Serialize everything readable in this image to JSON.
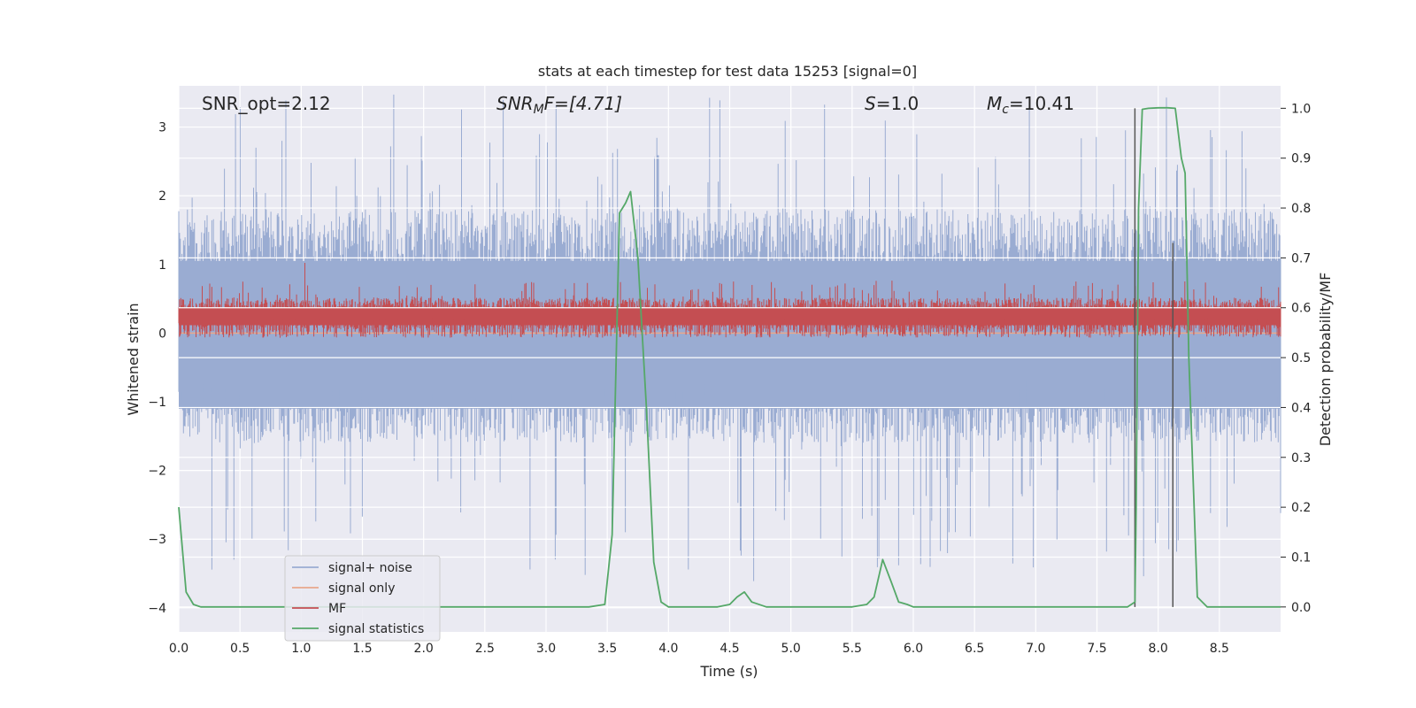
{
  "colors": {
    "background": "#eaeaf2",
    "grid": "#ffffff",
    "signal_noise": "#9aacd2",
    "signal_only": "#e8a88c",
    "mf": "#c44e52",
    "signal_statistics": "#55a868",
    "vline": "#555555"
  },
  "chart_data": {
    "type": "line",
    "title": "stats at each timestep for test data 15253 [signal=0]",
    "xlabel": "Time (s)",
    "ylabel": "Whitened strain",
    "ylabel_right": "Detection probability/MF",
    "xlim": [
      0,
      9
    ],
    "ylim": [
      -4.35,
      3.6
    ],
    "ylim_right": [
      -0.05,
      1.045
    ],
    "x_ticks": [
      0.0,
      0.5,
      1.0,
      1.5,
      2.0,
      2.5,
      3.0,
      3.5,
      4.0,
      4.5,
      5.0,
      5.5,
      6.0,
      6.5,
      7.0,
      7.5,
      8.0,
      8.5
    ],
    "x_tick_labels": [
      "0.0",
      "0.5",
      "1.0",
      "1.5",
      "2.0",
      "2.5",
      "3.0",
      "3.5",
      "4.0",
      "4.5",
      "5.0",
      "5.5",
      "6.0",
      "6.5",
      "7.0",
      "7.5",
      "8.0",
      "8.5"
    ],
    "y_ticks": [
      3,
      2,
      1,
      0,
      -1,
      -2,
      -3,
      -4
    ],
    "y_tick_labels": [
      "3",
      "2",
      "1",
      "0",
      "−1",
      "−2",
      "−3",
      "−4"
    ],
    "y_right_ticks": [
      1.0,
      0.9,
      0.8,
      0.7,
      0.6,
      0.5,
      0.4,
      0.3,
      0.2,
      0.1,
      0.0
    ],
    "y_right_tick_labels": [
      "1.0",
      "0.9",
      "0.8",
      "0.7",
      "0.6",
      "0.5",
      "0.4",
      "0.3",
      "0.2",
      "0.1",
      "0.0"
    ],
    "grid": true,
    "legend_position": "lower-left",
    "annotations": {
      "snr_opt": "SNR_opt=2.12",
      "snr_mf_main": "SNR",
      "snr_mf_sub": "M",
      "snr_mf_rest": "F=[4.71]",
      "s_main": "S",
      "s_rest": "=1.0",
      "mc_main": "M",
      "mc_sub": "c",
      "mc_rest": "=10.41"
    },
    "series": [
      {
        "name": "signal+ noise",
        "axis": "left",
        "noise_band": {
          "typical_low": -1.6,
          "typical_high": 1.8,
          "max_abs": 3.7
        }
      },
      {
        "name": "signal only",
        "axis": "left",
        "x": [
          0,
          9
        ],
        "y": [
          0.0,
          0.0
        ]
      },
      {
        "name": "MF",
        "axis": "right",
        "baseline": 0.6,
        "noise_band": {
          "low": 0.54,
          "high": 0.62,
          "peak_x": 1.03,
          "peak_y": 0.69
        }
      },
      {
        "name": "signal statistics",
        "axis": "right",
        "x": [
          0.0,
          0.06,
          0.12,
          0.18,
          0.3,
          1.0,
          2.0,
          3.0,
          3.35,
          3.48,
          3.54,
          3.6,
          3.65,
          3.69,
          3.75,
          3.82,
          3.88,
          3.94,
          4.0,
          4.2,
          4.4,
          4.5,
          4.56,
          4.62,
          4.68,
          4.8,
          5.0,
          5.5,
          5.62,
          5.68,
          5.75,
          5.82,
          5.88,
          5.95,
          6.0,
          7.0,
          7.75,
          7.81,
          7.82,
          7.84,
          7.87,
          7.92,
          8.0,
          8.08,
          8.14,
          8.19,
          8.22,
          8.25,
          8.32,
          8.4,
          9.0
        ],
        "y": [
          0.2,
          0.03,
          0.005,
          0.0,
          0.0,
          0.0,
          0.0,
          0.0,
          0.0,
          0.005,
          0.145,
          0.79,
          0.81,
          0.833,
          0.7,
          0.4,
          0.09,
          0.01,
          0.0,
          0.0,
          0.0,
          0.005,
          0.02,
          0.03,
          0.01,
          0.0,
          0.0,
          0.0,
          0.005,
          0.02,
          0.095,
          0.05,
          0.01,
          0.005,
          0.0,
          0.0,
          0.0,
          0.01,
          0.2,
          0.8,
          0.998,
          1.0,
          1.001,
          1.001,
          1.0,
          0.9,
          0.87,
          0.5,
          0.02,
          0.0,
          0.0
        ]
      }
    ],
    "vlines": [
      {
        "x": 7.81,
        "ymin_right": 0.0,
        "ymax_right": 1.0
      },
      {
        "x": 8.12,
        "ymin_right": 0.0,
        "ymax_right": 0.73
      }
    ]
  }
}
